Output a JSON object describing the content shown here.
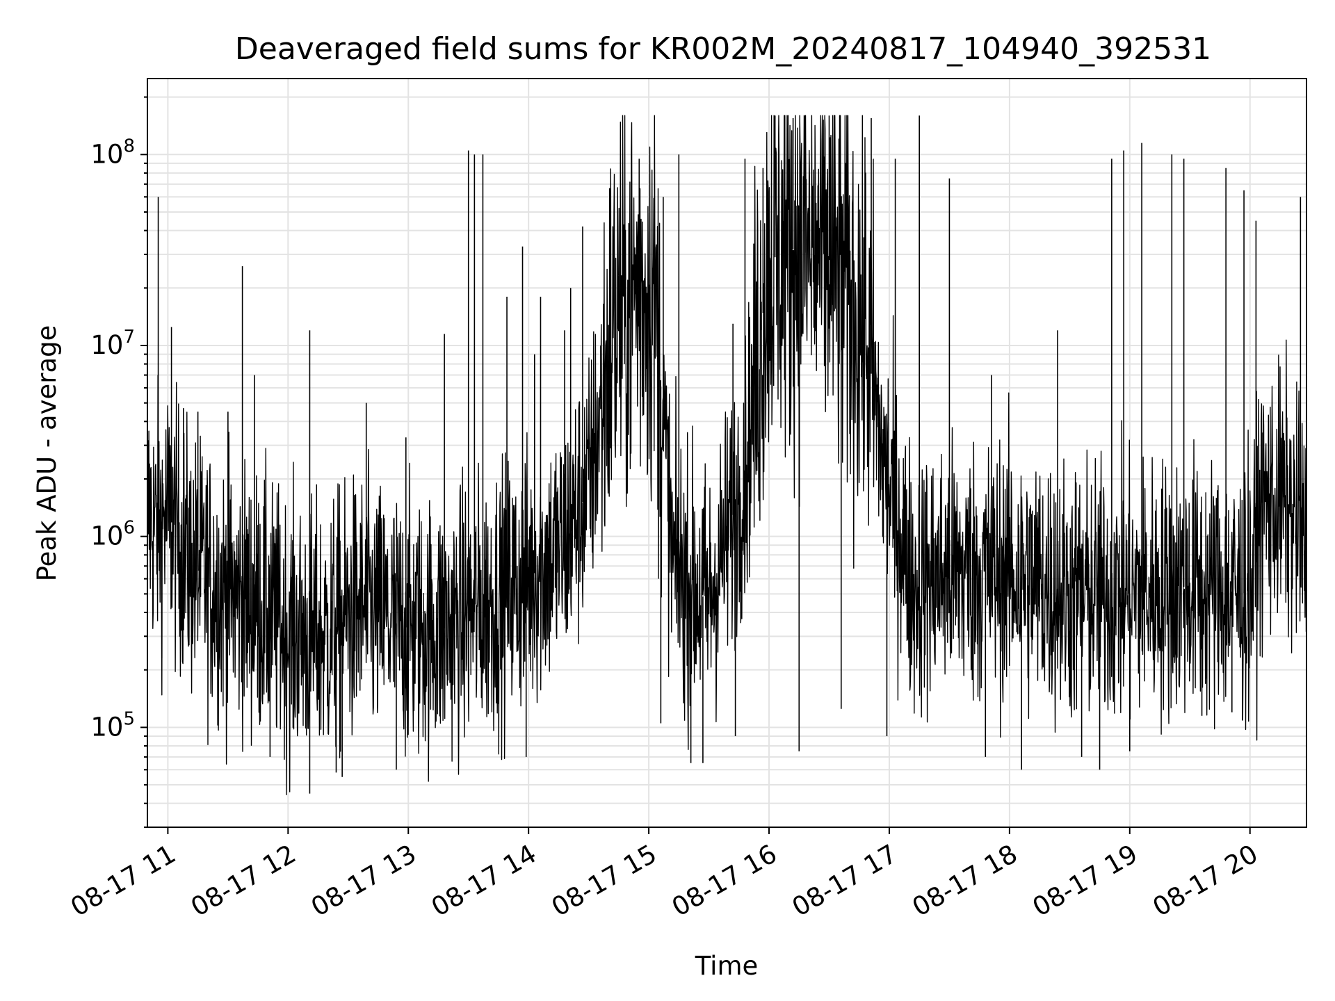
{
  "chart_data": {
    "type": "line",
    "title": "Deaveraged field sums for KR002M_20240817_104940_392531",
    "xlabel": "Time",
    "ylabel": "Peak ADU - average",
    "yscale": "log",
    "ylim": [
      30000,
      250000000
    ],
    "xlim_hours": [
      10.83,
      20.47
    ],
    "grid": true,
    "line_color": "#000000",
    "x_tick_labels": [
      "08-17 11",
      "08-17 12",
      "08-17 13",
      "08-17 14",
      "08-17 15",
      "08-17 16",
      "08-17 17",
      "08-17 18",
      "08-17 19",
      "08-17 20"
    ],
    "x_tick_hours": [
      11,
      12,
      13,
      14,
      15,
      16,
      17,
      18,
      19,
      20
    ],
    "y_tick_exponents": [
      5,
      6,
      7,
      8
    ],
    "series": [
      {
        "baseline_hours": [
          10.83,
          10.9,
          11.0,
          11.2,
          11.5,
          11.8,
          12.0,
          12.3,
          12.6,
          13.0,
          13.3,
          13.6,
          14.0,
          14.3,
          14.5,
          14.7,
          14.9,
          15.05,
          15.2,
          15.5,
          15.8,
          16.0,
          16.2,
          16.5,
          16.8,
          16.95,
          17.2,
          17.5,
          18.0,
          18.5,
          19.0,
          19.5,
          20.0,
          20.1,
          20.3,
          20.47
        ],
        "baseline_values": [
          1400000,
          1100000,
          1300000,
          700000,
          500000,
          420000,
          320000,
          300000,
          420000,
          330000,
          330000,
          420000,
          600000,
          900000,
          1800000,
          12000000,
          20000000,
          18000000,
          700000,
          450000,
          2200000,
          28000000,
          32000000,
          28000000,
          12000000,
          2500000,
          550000,
          650000,
          650000,
          500000,
          500000,
          550000,
          500000,
          1500000,
          1500000,
          850000
        ],
        "spikes": [
          [
            10.92,
            60000000
          ],
          [
            10.95,
            230000
          ],
          [
            11.03,
            12500000
          ],
          [
            11.13,
            4700000
          ],
          [
            11.25,
            4500000
          ],
          [
            11.5,
            4500000
          ],
          [
            11.62,
            26000000
          ],
          [
            11.72,
            7000000
          ],
          [
            11.85,
            70000
          ],
          [
            12.18,
            12000000
          ],
          [
            12.18,
            45000
          ],
          [
            12.4,
            58000
          ],
          [
            12.45,
            55000
          ],
          [
            12.65,
            5000000
          ],
          [
            12.9,
            60000
          ],
          [
            12.98,
            3300000
          ],
          [
            13.3,
            11500000
          ],
          [
            13.5,
            105000000
          ],
          [
            13.55,
            100000000
          ],
          [
            13.62,
            100000000
          ],
          [
            13.82,
            18000000
          ],
          [
            13.95,
            33000000
          ],
          [
            13.98,
            70000
          ],
          [
            14.05,
            9000000
          ],
          [
            14.1,
            18000000
          ],
          [
            14.3,
            12000000
          ],
          [
            14.35,
            20000000
          ],
          [
            14.45,
            42000000
          ],
          [
            14.6,
            10000000
          ],
          [
            14.92,
            95000000
          ],
          [
            15.1,
            105000
          ],
          [
            15.12,
            60000000
          ],
          [
            15.25,
            100000000
          ],
          [
            15.35,
            65000
          ],
          [
            15.45,
            65000
          ],
          [
            15.7,
            13000000
          ],
          [
            15.72,
            90000
          ],
          [
            15.8,
            95000000
          ],
          [
            15.95,
            85000000
          ],
          [
            16.05,
            160000000
          ],
          [
            16.2,
            155000000
          ],
          [
            16.25,
            75000
          ],
          [
            16.3,
            160000000
          ],
          [
            16.5,
            160000000
          ],
          [
            16.6,
            125000
          ],
          [
            16.85,
            155000000
          ],
          [
            16.98,
            90000
          ],
          [
            17.05,
            95000000
          ],
          [
            17.25,
            160000000
          ],
          [
            17.5,
            75000000
          ],
          [
            17.8,
            70000
          ],
          [
            17.85,
            7000000
          ],
          [
            18.1,
            60000
          ],
          [
            18.4,
            12000000
          ],
          [
            18.6,
            70000
          ],
          [
            18.75,
            60000
          ],
          [
            18.85,
            95000000
          ],
          [
            18.95,
            105000000
          ],
          [
            19.0,
            75000
          ],
          [
            19.1,
            115000000
          ],
          [
            19.35,
            100000000
          ],
          [
            19.45,
            95000000
          ],
          [
            19.6,
            115000
          ],
          [
            19.8,
            85000000
          ],
          [
            19.85,
            120000
          ],
          [
            19.95,
            65000000
          ],
          [
            20.05,
            45000000
          ],
          [
            20.1,
            3500000
          ],
          [
            20.42,
            60000000
          ]
        ]
      }
    ]
  }
}
